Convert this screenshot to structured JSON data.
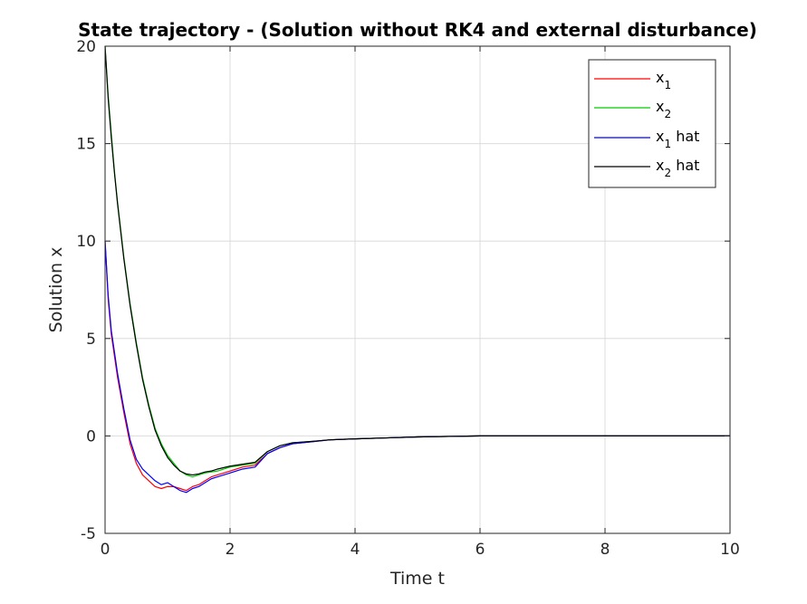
{
  "chart_data": {
    "type": "line",
    "title": "State trajectory - (Solution without RK4 and external disturbance)",
    "xlabel": "Time t",
    "ylabel": "Solution x",
    "xlim": [
      0,
      10
    ],
    "ylim": [
      -5,
      20
    ],
    "xticks": [
      0,
      2,
      4,
      6,
      8,
      10
    ],
    "yticks": [
      -5,
      0,
      5,
      10,
      15,
      20
    ],
    "xtick_labels": [
      "0",
      "2",
      "4",
      "6",
      "8",
      "10"
    ],
    "ytick_labels": [
      "-5",
      "0",
      "5",
      "10",
      "15",
      "20"
    ],
    "grid": true,
    "legend_position": "top-right",
    "series": [
      {
        "name": "x_1",
        "legend_main": "x",
        "legend_sub": "1",
        "legend_suffix": "",
        "color": "#ff0000",
        "x": [
          0,
          0.05,
          0.1,
          0.2,
          0.3,
          0.4,
          0.5,
          0.6,
          0.7,
          0.8,
          0.9,
          1.0,
          1.1,
          1.2,
          1.3,
          1.4,
          1.5,
          1.6,
          1.7,
          1.8,
          1.9,
          2.0,
          2.2,
          2.4,
          2.6,
          2.8,
          3.0,
          3.3,
          3.6,
          4.0,
          4.5,
          5.0,
          5.6,
          6.0,
          7.0,
          8.0,
          9.0,
          10.0
        ],
        "y": [
          10,
          7.0,
          5.2,
          3.0,
          1.2,
          -0.4,
          -1.4,
          -2.0,
          -2.3,
          -2.6,
          -2.7,
          -2.6,
          -2.6,
          -2.7,
          -2.8,
          -2.6,
          -2.5,
          -2.3,
          -2.1,
          -2.0,
          -1.9,
          -1.8,
          -1.6,
          -1.5,
          -0.9,
          -0.6,
          -0.4,
          -0.3,
          -0.2,
          -0.15,
          -0.1,
          -0.05,
          -0.02,
          0,
          0,
          0,
          0,
          0
        ]
      },
      {
        "name": "x_2",
        "legend_main": "x",
        "legend_sub": "2",
        "legend_suffix": "",
        "color": "#00cc00",
        "x": [
          0,
          0.05,
          0.1,
          0.15,
          0.2,
          0.3,
          0.4,
          0.5,
          0.6,
          0.7,
          0.8,
          0.9,
          1.0,
          1.1,
          1.2,
          1.3,
          1.4,
          1.5,
          1.6,
          1.7,
          1.8,
          2.0,
          2.2,
          2.4,
          2.6,
          2.8,
          3.0,
          3.3,
          3.6,
          4.0,
          4.5,
          5.0,
          5.6,
          6.0,
          7.0,
          8.0,
          9.0,
          10.0
        ],
        "y": [
          20,
          17.5,
          15.5,
          13.6,
          12.0,
          9.2,
          6.8,
          4.8,
          3.0,
          1.6,
          0.4,
          -0.4,
          -1.0,
          -1.4,
          -1.8,
          -2.0,
          -2.1,
          -2.0,
          -1.9,
          -1.85,
          -1.8,
          -1.6,
          -1.5,
          -1.4,
          -0.8,
          -0.5,
          -0.35,
          -0.28,
          -0.2,
          -0.15,
          -0.1,
          -0.05,
          -0.02,
          0,
          0,
          0,
          0,
          0
        ]
      },
      {
        "name": "x_1 hat",
        "legend_main": "x",
        "legend_sub": "1",
        "legend_suffix": " hat",
        "color": "#0000ff",
        "x": [
          0,
          0.05,
          0.1,
          0.2,
          0.3,
          0.4,
          0.5,
          0.6,
          0.7,
          0.8,
          0.9,
          1.0,
          1.1,
          1.2,
          1.3,
          1.4,
          1.5,
          1.6,
          1.7,
          1.8,
          1.9,
          2.0,
          2.2,
          2.4,
          2.6,
          2.8,
          3.0,
          3.3,
          3.6,
          4.0,
          4.5,
          5.0,
          5.6,
          6.0,
          7.0,
          8.0,
          9.0,
          10.0
        ],
        "y": [
          10,
          7.2,
          5.4,
          3.2,
          1.4,
          -0.2,
          -1.2,
          -1.7,
          -2.0,
          -2.3,
          -2.5,
          -2.4,
          -2.6,
          -2.8,
          -2.9,
          -2.7,
          -2.6,
          -2.4,
          -2.2,
          -2.1,
          -2.0,
          -1.9,
          -1.7,
          -1.6,
          -0.9,
          -0.6,
          -0.4,
          -0.3,
          -0.2,
          -0.15,
          -0.1,
          -0.05,
          -0.02,
          0,
          0,
          0,
          0,
          0
        ]
      },
      {
        "name": "x_2 hat",
        "legend_main": "x",
        "legend_sub": "2",
        "legend_suffix": " hat",
        "color": "#000000",
        "x": [
          0,
          0.05,
          0.1,
          0.15,
          0.2,
          0.3,
          0.4,
          0.5,
          0.6,
          0.7,
          0.8,
          0.9,
          1.0,
          1.1,
          1.2,
          1.3,
          1.4,
          1.5,
          1.6,
          1.7,
          1.8,
          2.0,
          2.2,
          2.4,
          2.6,
          2.8,
          3.0,
          3.3,
          3.6,
          4.0,
          4.5,
          5.0,
          5.6,
          6.0,
          7.0,
          8.0,
          9.0,
          10.0
        ],
        "y": [
          20,
          17.3,
          15.3,
          13.5,
          11.9,
          9.1,
          6.7,
          4.7,
          2.9,
          1.5,
          0.3,
          -0.5,
          -1.1,
          -1.5,
          -1.8,
          -1.95,
          -2.0,
          -1.95,
          -1.85,
          -1.8,
          -1.7,
          -1.55,
          -1.45,
          -1.35,
          -0.8,
          -0.5,
          -0.35,
          -0.28,
          -0.2,
          -0.15,
          -0.1,
          -0.05,
          -0.02,
          0,
          0,
          0,
          0,
          0
        ]
      }
    ]
  }
}
